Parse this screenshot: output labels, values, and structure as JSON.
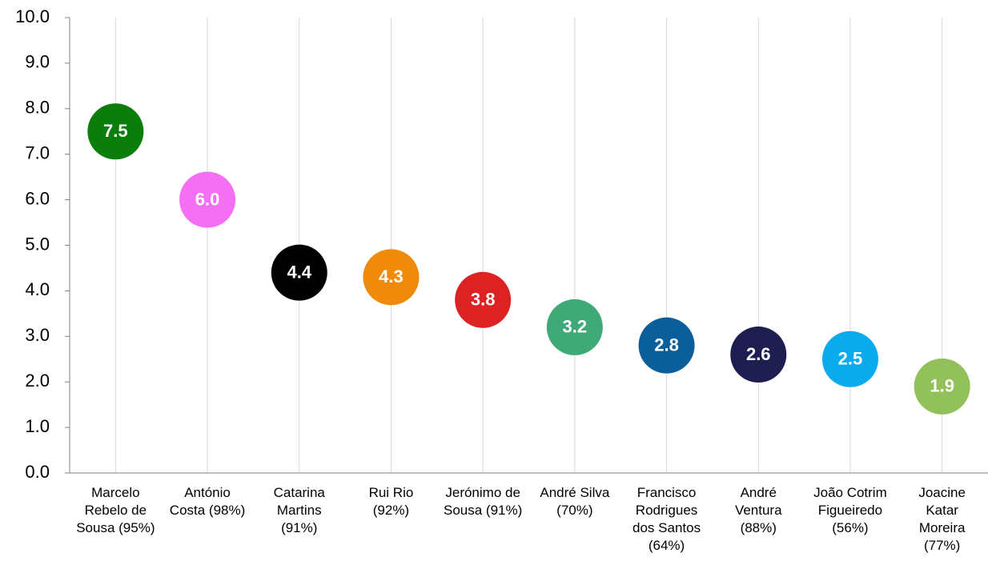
{
  "chart_data": {
    "type": "scatter",
    "categories": [
      "Marcelo\nRebelo de\nSousa (95%)",
      "António\nCosta (98%)",
      "Catarina\nMartins\n(91%)",
      "Rui Rio\n(92%)",
      "Jerónimo de\nSousa (91%)",
      "André Silva\n(70%)",
      "Francisco\nRodrigues\ndos Santos\n(64%)",
      "André\nVentura\n(88%)",
      "João Cotrim\nFigueiredo\n(56%)",
      "Joacine\nKatar\nMoreira\n(77%)"
    ],
    "values": [
      7.5,
      6.0,
      4.4,
      4.3,
      3.8,
      3.2,
      2.8,
      2.6,
      2.5,
      1.9
    ],
    "value_labels": [
      "7.5",
      "6.0",
      "4.4",
      "4.3",
      "3.8",
      "3.2",
      "2.8",
      "2.6",
      "2.5",
      "1.9"
    ],
    "colors": [
      "#0a7d0a",
      "#f56ff5",
      "#000000",
      "#f08a0b",
      "#dc2222",
      "#3faa78",
      "#0a5f9a",
      "#1e1e50",
      "#0aabec",
      "#92c05a"
    ],
    "ylim": [
      0,
      10
    ],
    "yticks": [
      {
        "value": 0,
        "label": "0.0"
      },
      {
        "value": 1,
        "label": "1.0"
      },
      {
        "value": 2,
        "label": "2.0"
      },
      {
        "value": 3,
        "label": "3.0"
      },
      {
        "value": 4,
        "label": "4.0"
      },
      {
        "value": 5,
        "label": "5.0"
      },
      {
        "value": 6,
        "label": "6.0"
      },
      {
        "value": 7,
        "label": "7.0"
      },
      {
        "value": 8,
        "label": "8.0"
      },
      {
        "value": 9,
        "label": "9.0"
      },
      {
        "value": 10,
        "label": "10.0"
      }
    ],
    "grid": true
  }
}
